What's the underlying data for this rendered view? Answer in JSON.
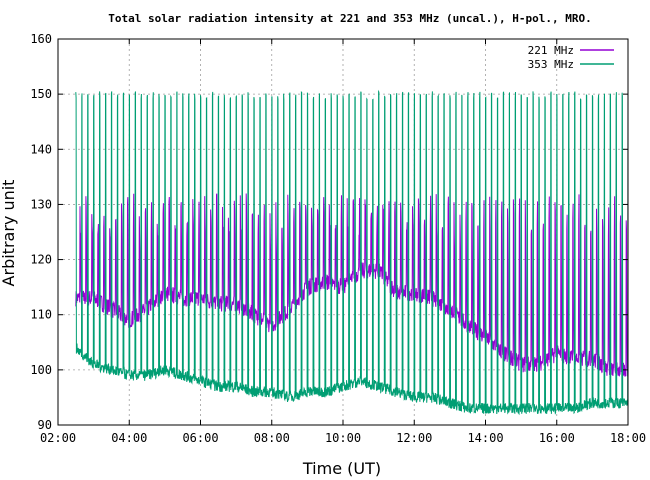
{
  "chart_data": {
    "type": "line",
    "title": "Total solar radiation intensity at 221 and 353 MHz (uncal.), H-pol., MRO.",
    "xlabel": "Time (UT)",
    "ylabel": "Arbitrary unit",
    "xlim": [
      "02:00",
      "18:00"
    ],
    "ylim": [
      90,
      160
    ],
    "xticks": [
      "02:00",
      "04:00",
      "06:00",
      "08:00",
      "10:00",
      "12:00",
      "14:00",
      "16:00",
      "18:00"
    ],
    "yticks": [
      "90",
      "100",
      "110",
      "120",
      "130",
      "140",
      "150",
      "160"
    ],
    "grid": true,
    "legend_position": "top-right",
    "series": [
      {
        "name": "221 MHz",
        "color": "#9400d3",
        "x": [
          "02:30",
          "03:00",
          "03:30",
          "04:00",
          "04:30",
          "05:00",
          "05:30",
          "06:00",
          "06:30",
          "07:00",
          "07:30",
          "08:00",
          "08:30",
          "09:00",
          "09:30",
          "10:00",
          "10:30",
          "11:00",
          "11:30",
          "12:00",
          "12:30",
          "13:00",
          "13:30",
          "14:00",
          "14:30",
          "15:00",
          "15:30",
          "16:00",
          "16:30",
          "17:00",
          "17:30",
          "18:00"
        ],
        "values": [
          113,
          113,
          111,
          109,
          111,
          114,
          113,
          113,
          112,
          112,
          110,
          108,
          111,
          115,
          116,
          115,
          118,
          118,
          114,
          114,
          113,
          111,
          108,
          106,
          103,
          101,
          101,
          103,
          102,
          102,
          100,
          100
        ],
        "spike_peak": 130
      },
      {
        "name": "353 MHz",
        "color": "#009e73",
        "x": [
          "02:30",
          "03:00",
          "03:30",
          "04:00",
          "04:30",
          "05:00",
          "05:30",
          "06:00",
          "06:30",
          "07:00",
          "07:30",
          "08:00",
          "08:30",
          "09:00",
          "09:30",
          "10:00",
          "10:30",
          "11:00",
          "11:30",
          "12:00",
          "12:30",
          "13:00",
          "13:30",
          "14:00",
          "14:30",
          "15:00",
          "15:30",
          "16:00",
          "16:30",
          "17:00",
          "17:30",
          "18:00"
        ],
        "values": [
          104,
          101,
          100,
          99,
          99,
          100,
          99,
          98,
          97,
          97,
          96,
          96,
          95,
          96,
          96,
          97,
          98,
          97,
          96,
          95,
          95,
          94,
          93,
          93,
          93,
          93,
          93,
          93,
          93,
          94,
          94,
          94
        ],
        "spike_peak": 150
      }
    ]
  }
}
